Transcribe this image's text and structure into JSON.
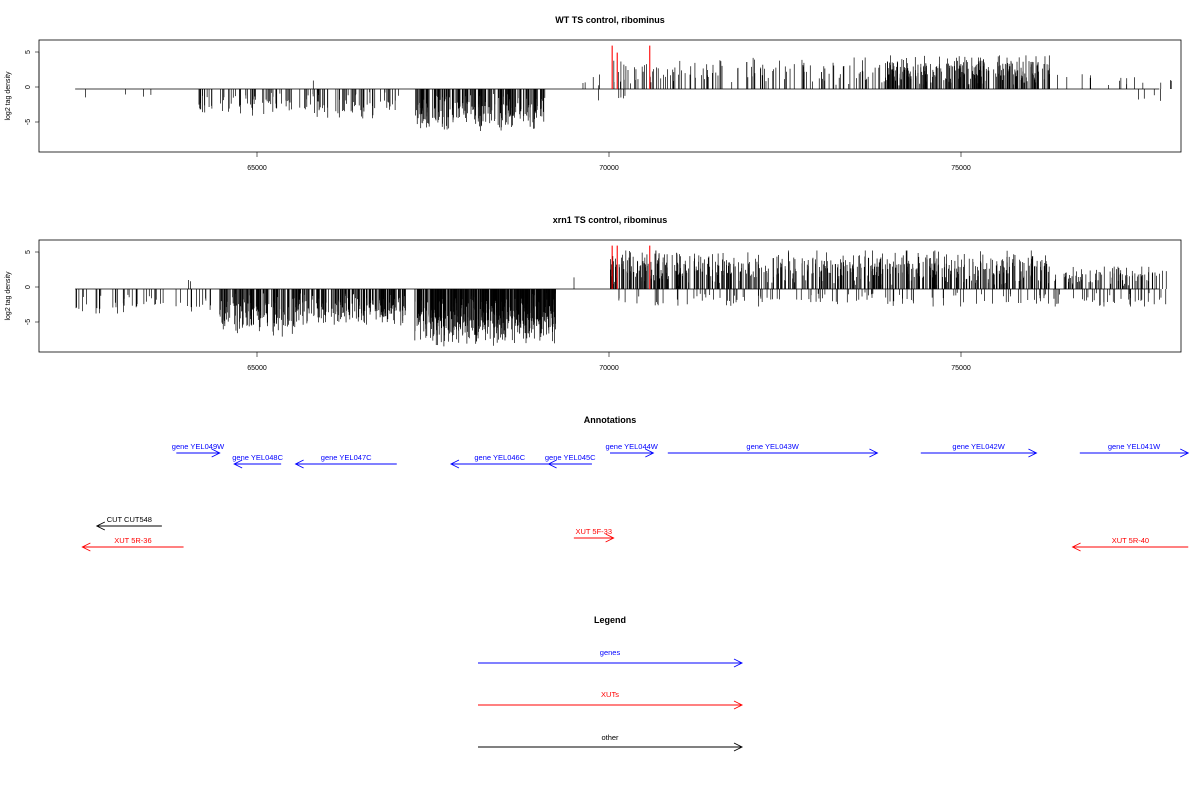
{
  "chart_data": [
    {
      "type": "bar",
      "title": "WT TS control, ribominus",
      "ylabel": "log2 tag density",
      "ylim": [
        -9,
        7
      ],
      "xlim": [
        61800,
        77600
      ],
      "x_ticks": [
        65000,
        70000,
        75000
      ],
      "x_tick_labels": [
        "65000",
        "70000",
        "75000"
      ],
      "y_ticks": [
        -5,
        0,
        5
      ],
      "y_tick_labels": [
        "-5",
        "0",
        "5"
      ],
      "baseline_range": [
        62300,
        77300
      ],
      "highlight_color": "#ff0000",
      "highlights": [
        {
          "x": 69730,
          "value": 6.2
        },
        {
          "x": 69800,
          "value": 5.2
        },
        {
          "x": 70250,
          "value": 6.2
        }
      ],
      "segments": [
        {
          "range": [
            62300,
            63500
          ],
          "sign": -1,
          "density": 0.004,
          "max": 1.2,
          "seed": 3
        },
        {
          "range": [
            64000,
            65300
          ],
          "sign": -1,
          "density": 0.04,
          "max": 3.8,
          "seed": 5
        },
        {
          "range": [
            65000,
            65600
          ],
          "sign": 1,
          "density": 0.003,
          "max": 1.6,
          "seed": 6
        },
        {
          "range": [
            65400,
            66800
          ],
          "sign": -1,
          "density": 0.06,
          "max": 4.2,
          "seed": 7
        },
        {
          "range": [
            67000,
            68800
          ],
          "sign": -1,
          "density": 0.14,
          "max": 6.0,
          "seed": 11
        },
        {
          "range": [
            69200,
            69700
          ],
          "sign": 1,
          "density": 0.006,
          "max": 3.0,
          "seed": 13
        },
        {
          "range": [
            69400,
            70000
          ],
          "sign": -1,
          "density": 0.004,
          "max": 2.0,
          "seed": 14
        },
        {
          "range": [
            69700,
            73600
          ],
          "sign": 1,
          "density": 0.035,
          "max": 4.5,
          "seed": 17
        },
        {
          "range": [
            73500,
            75800
          ],
          "sign": 1,
          "density": 0.12,
          "max": 4.8,
          "seed": 19
        },
        {
          "range": [
            75800,
            76700
          ],
          "sign": 1,
          "density": 0.01,
          "max": 2.4,
          "seed": 21
        },
        {
          "range": [
            76700,
            77600
          ],
          "sign": 1,
          "density": 0.015,
          "max": 2.2,
          "seed": 23
        },
        {
          "range": [
            77000,
            77400
          ],
          "sign": -1,
          "density": 0.01,
          "max": 2.0,
          "seed": 24
        }
      ]
    },
    {
      "type": "bar",
      "title": "xrn1 TS control, ribominus",
      "ylabel": "log2 tag density",
      "ylim": [
        -9,
        7
      ],
      "xlim": [
        61800,
        77600
      ],
      "x_ticks": [
        65000,
        70000,
        75000
      ],
      "x_tick_labels": [
        "65000",
        "70000",
        "75000"
      ],
      "y_ticks": [
        -5,
        0,
        5
      ],
      "y_tick_labels": [
        "-5",
        "0",
        "5"
      ],
      "baseline_range": [
        62300,
        77300
      ],
      "highlight_color": "#ff0000",
      "highlights": [
        {
          "x": 69730,
          "value": 6.2
        },
        {
          "x": 69800,
          "value": 6.2
        },
        {
          "x": 70250,
          "value": 6.2
        }
      ],
      "segments": [
        {
          "range": [
            62300,
            63800
          ],
          "sign": -1,
          "density": 0.03,
          "max": 3.5,
          "seed": 31
        },
        {
          "range": [
            63600,
            64400
          ],
          "sign": 1,
          "density": 0.005,
          "max": 2.8,
          "seed": 32
        },
        {
          "range": [
            63800,
            64200
          ],
          "sign": -1,
          "density": 0.02,
          "max": 3.6,
          "seed": 33
        },
        {
          "range": [
            64300,
            65400
          ],
          "sign": -1,
          "density": 0.12,
          "max": 6.8,
          "seed": 35
        },
        {
          "range": [
            65300,
            66900
          ],
          "sign": -1,
          "density": 0.1,
          "max": 5.2,
          "seed": 37
        },
        {
          "range": [
            67000,
            68950
          ],
          "sign": -1,
          "density": 0.25,
          "max": 8.2,
          "seed": 41
        },
        {
          "range": [
            69000,
            69400
          ],
          "sign": 1,
          "density": 0.005,
          "max": 1.8,
          "seed": 43
        },
        {
          "range": [
            69700,
            75800
          ],
          "sign": 1,
          "density": 0.1,
          "max": 5.5,
          "seed": 47
        },
        {
          "range": [
            69700,
            77400
          ],
          "sign": -1,
          "density": 0.02,
          "max": 2.5,
          "seed": 49
        },
        {
          "range": [
            75800,
            77400
          ],
          "sign": 1,
          "density": 0.05,
          "max": 3.2,
          "seed": 53
        }
      ]
    }
  ],
  "annotations": {
    "title": "Annotations",
    "xlim": [
      61800,
      77600
    ],
    "features": [
      {
        "label": "gene YEL049W",
        "start": 63700,
        "end": 64300,
        "strand": "+",
        "row": 0,
        "color": "#0000ff"
      },
      {
        "label": "gene YEL048C",
        "start": 64500,
        "end": 65150,
        "strand": "-",
        "row": 1,
        "color": "#0000ff"
      },
      {
        "label": "gene YEL047C",
        "start": 65350,
        "end": 66750,
        "strand": "-",
        "row": 1,
        "color": "#0000ff"
      },
      {
        "label": "gene YEL046C",
        "start": 67500,
        "end": 68850,
        "strand": "-",
        "row": 1,
        "color": "#0000ff"
      },
      {
        "label": "gene YEL045C",
        "start": 68850,
        "end": 69450,
        "strand": "-",
        "row": 1,
        "color": "#0000ff"
      },
      {
        "label": "gene YEL044W",
        "start": 69700,
        "end": 70300,
        "strand": "+",
        "row": 0,
        "color": "#0000ff"
      },
      {
        "label": "gene YEL043W",
        "start": 70500,
        "end": 73400,
        "strand": "+",
        "row": 0,
        "color": "#0000ff"
      },
      {
        "label": "gene YEL042W",
        "start": 74000,
        "end": 75600,
        "strand": "+",
        "row": 0,
        "color": "#0000ff"
      },
      {
        "label": "gene YEL041W",
        "start": 76200,
        "end": 77700,
        "strand": "+",
        "row": 0,
        "color": "#0000ff"
      },
      {
        "label": "CUT CUT548",
        "start": 62600,
        "end": 63500,
        "strand": "-",
        "row": 2,
        "color": "#000000"
      },
      {
        "label": "XUT 5R-36",
        "start": 62400,
        "end": 63800,
        "strand": "-",
        "row": 3,
        "color": "#ff0000"
      },
      {
        "label": "XUT 5F-33",
        "start": 69200,
        "end": 69750,
        "strand": "+",
        "row": 2.5,
        "color": "#ff0000"
      },
      {
        "label": "XUT 5R-40",
        "start": 76100,
        "end": 77700,
        "strand": "-",
        "row": 3,
        "color": "#ff0000"
      }
    ]
  },
  "legend": {
    "title": "Legend",
    "items": [
      {
        "label": "genes",
        "color": "#0000ff"
      },
      {
        "label": "XUTs",
        "color": "#ff0000"
      },
      {
        "label": "other",
        "color": "#000000"
      }
    ]
  }
}
